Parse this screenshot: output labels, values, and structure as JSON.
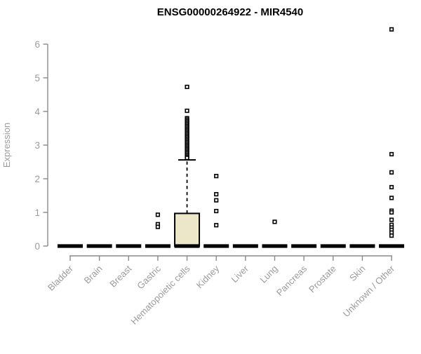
{
  "chart_data": {
    "type": "boxplot",
    "title": "ENSG00000264922 - MIR4540",
    "xlabel": "",
    "ylabel": "Expression",
    "ylim": [
      0,
      6
    ],
    "yticks": [
      0,
      1,
      2,
      3,
      4,
      5,
      6
    ],
    "grid": false,
    "legend": false,
    "colors": {
      "background": "#FFFFFF",
      "title": "#000000",
      "axis_line": "#8A8A8A",
      "tick_label": "#9B9B9B",
      "box_fill": "#EDE7C9",
      "box_stroke": "#000000",
      "median": "#000000",
      "whisker": "#000000",
      "outlier_fill": "#FFFFFF",
      "outlier_stroke": "#000000"
    },
    "categories": [
      "Bladder",
      "Brain",
      "Breast",
      "Gastric",
      "Hematopoietic cells",
      "Kidney",
      "Liver",
      "Lung",
      "Pancreas",
      "Prostate",
      "Skin",
      "Unknown / Other"
    ],
    "boxes": [
      {
        "category": "Bladder",
        "q1": 0,
        "median": 0,
        "q3": 0,
        "whisker_low": 0,
        "whisker_high": 0,
        "outliers": []
      },
      {
        "category": "Brain",
        "q1": 0,
        "median": 0,
        "q3": 0,
        "whisker_low": 0,
        "whisker_high": 0,
        "outliers": []
      },
      {
        "category": "Breast",
        "q1": 0,
        "median": 0,
        "q3": 0,
        "whisker_low": 0,
        "whisker_high": 0,
        "outliers": []
      },
      {
        "category": "Gastric",
        "q1": 0,
        "median": 0,
        "q3": 0,
        "whisker_low": 0,
        "whisker_high": 0,
        "outliers": [
          0.93,
          0.65,
          0.57
        ]
      },
      {
        "category": "Hematopoietic cells",
        "q1": 0,
        "median": 0,
        "q3": 0.97,
        "whisker_low": 0,
        "whisker_high": 2.56,
        "outliers": [
          4.73,
          4.02,
          3.8,
          3.76,
          3.72,
          3.68,
          3.64,
          3.6,
          3.56,
          3.52,
          3.48,
          3.44,
          3.4,
          3.36,
          3.32,
          3.28,
          3.24,
          3.2,
          3.16,
          3.12,
          3.08,
          3.04,
          3.0,
          2.96,
          2.92,
          2.88,
          2.84,
          2.8,
          2.76,
          2.72,
          2.68,
          2.64,
          2.62
        ]
      },
      {
        "category": "Kidney",
        "q1": 0,
        "median": 0,
        "q3": 0,
        "whisker_low": 0,
        "whisker_high": 0,
        "outliers": [
          2.08,
          1.54,
          1.36,
          1.04,
          0.62
        ]
      },
      {
        "category": "Liver",
        "q1": 0,
        "median": 0,
        "q3": 0,
        "whisker_low": 0,
        "whisker_high": 0,
        "outliers": []
      },
      {
        "category": "Lung",
        "q1": 0,
        "median": 0,
        "q3": 0,
        "whisker_low": 0,
        "whisker_high": 0,
        "outliers": [
          0.72
        ]
      },
      {
        "category": "Pancreas",
        "q1": 0,
        "median": 0,
        "q3": 0,
        "whisker_low": 0,
        "whisker_high": 0,
        "outliers": []
      },
      {
        "category": "Prostate",
        "q1": 0,
        "median": 0,
        "q3": 0,
        "whisker_low": 0,
        "whisker_high": 0,
        "outliers": []
      },
      {
        "category": "Skin",
        "q1": 0,
        "median": 0,
        "q3": 0,
        "whisker_low": 0,
        "whisker_high": 0,
        "outliers": []
      },
      {
        "category": "Unknown / Other",
        "q1": 0,
        "median": 0,
        "q3": 0,
        "whisker_low": 0,
        "whisker_high": 0,
        "outliers": [
          6.44,
          2.73,
          2.19,
          1.75,
          1.43,
          1.05,
          1.0,
          0.78,
          0.63,
          0.55,
          0.48,
          0.4,
          0.31
        ]
      }
    ]
  }
}
